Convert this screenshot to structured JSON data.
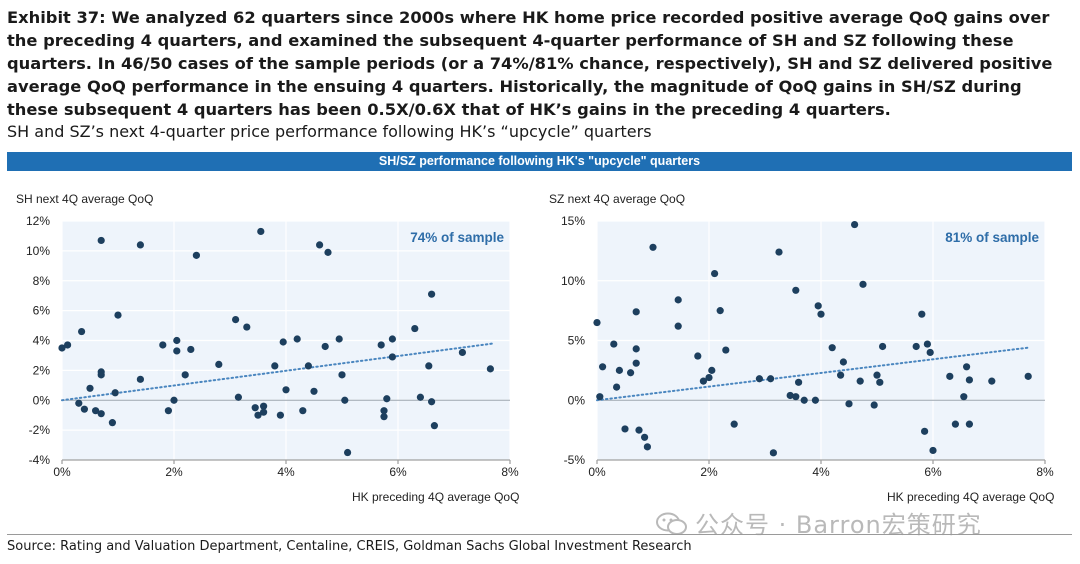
{
  "title": "Exhibit 37: We analyzed 62 quarters since 2000s where HK home price recorded positive average QoQ gains over the preceding 4 quarters, and examined the subsequent 4-quarter performance of SH and SZ following these quarters. In 46/50 cases of the sample periods (or a 74%/81% chance, respectively), SH and SZ delivered positive average QoQ performance in the ensuing 4 quarters. Historically, the magnitude of QoQ gains in SH/SZ during these subsequent 4 quarters has been 0.5X/0.6X that of HK’s gains in the preceding 4 quarters.",
  "subtitle": "SH and SZ’s next 4-quarter price performance following HK’s “upcycle” quarters",
  "band_title": "SH/SZ performance following HK's \"upcycle\" quarters",
  "source": "Source: Rating and Valuation Department, Centaline, CREIS, Goldman Sachs Global Investment Research",
  "watermark": "公众号 · Barron宏策研究",
  "colors": {
    "band": "#1f6fb4",
    "dot": "#1d3f5e",
    "trend": "#4a86bf",
    "plot_bg": "#eef4fb",
    "annotation": "#2e6da8"
  },
  "chart_data": [
    {
      "type": "scatter",
      "title": "",
      "ylabel": "SH next 4Q average QoQ",
      "xlabel": "HK preceding 4Q average QoQ",
      "annotation": "74% of sample",
      "xlim": [
        0,
        8
      ],
      "ylim": [
        -4,
        12
      ],
      "x_ticks": [
        "0%",
        "2%",
        "4%",
        "6%",
        "8%"
      ],
      "y_ticks": [
        "-4%",
        "-2%",
        "0%",
        "2%",
        "4%",
        "6%",
        "8%",
        "10%",
        "12%"
      ],
      "grid": true,
      "trendline": {
        "x": [
          0,
          7.7
        ],
        "y": [
          0,
          3.8
        ]
      },
      "points": [
        [
          0,
          3.5
        ],
        [
          0.1,
          3.7
        ],
        [
          0.3,
          -0.2
        ],
        [
          0.35,
          4.6
        ],
        [
          0.4,
          -0.6
        ],
        [
          0.5,
          0.8
        ],
        [
          0.6,
          -0.7
        ],
        [
          0.7,
          10.7
        ],
        [
          0.7,
          1.7
        ],
        [
          0.7,
          1.9
        ],
        [
          0.7,
          -0.9
        ],
        [
          0.9,
          -1.5
        ],
        [
          0.95,
          0.5
        ],
        [
          1.0,
          5.7
        ],
        [
          1.4,
          10.4
        ],
        [
          1.4,
          1.4
        ],
        [
          1.8,
          3.7
        ],
        [
          1.9,
          -0.7
        ],
        [
          2.0,
          0
        ],
        [
          2.05,
          4.0
        ],
        [
          2.05,
          3.3
        ],
        [
          2.2,
          1.7
        ],
        [
          2.3,
          3.4
        ],
        [
          2.4,
          9.7
        ],
        [
          2.8,
          2.4
        ],
        [
          3.1,
          5.4
        ],
        [
          3.15,
          0.2
        ],
        [
          3.3,
          4.9
        ],
        [
          3.45,
          -0.5
        ],
        [
          3.5,
          -1.0
        ],
        [
          3.55,
          11.3
        ],
        [
          3.6,
          -0.4
        ],
        [
          3.6,
          -0.8
        ],
        [
          3.8,
          2.3
        ],
        [
          3.9,
          -1.0
        ],
        [
          3.95,
          3.9
        ],
        [
          4.0,
          0.7
        ],
        [
          4.2,
          4.1
        ],
        [
          4.3,
          -0.7
        ],
        [
          4.4,
          2.3
        ],
        [
          4.5,
          0.6
        ],
        [
          4.6,
          10.4
        ],
        [
          4.7,
          3.6
        ],
        [
          4.75,
          9.9
        ],
        [
          4.95,
          4.1
        ],
        [
          5.0,
          1.7
        ],
        [
          5.05,
          0
        ],
        [
          5.1,
          -3.5
        ],
        [
          5.7,
          3.7
        ],
        [
          5.75,
          -1.1
        ],
        [
          5.75,
          -0.7
        ],
        [
          5.8,
          0.1
        ],
        [
          5.9,
          4.1
        ],
        [
          5.9,
          2.9
        ],
        [
          6.3,
          4.8
        ],
        [
          6.4,
          0.2
        ],
        [
          6.55,
          2.3
        ],
        [
          6.6,
          7.1
        ],
        [
          6.6,
          -0.1
        ],
        [
          6.65,
          -1.7
        ],
        [
          7.15,
          3.2
        ],
        [
          7.65,
          2.1
        ]
      ]
    },
    {
      "type": "scatter",
      "title": "",
      "ylabel": "SZ next 4Q average QoQ",
      "xlabel": "HK preceding 4Q average QoQ",
      "annotation": "81% of sample",
      "xlim": [
        0,
        8
      ],
      "ylim": [
        -5,
        15
      ],
      "x_ticks": [
        "0%",
        "2%",
        "4%",
        "6%",
        "8%"
      ],
      "y_ticks": [
        "-5%",
        "0%",
        "5%",
        "10%",
        "15%"
      ],
      "grid": true,
      "trendline": {
        "x": [
          0,
          7.7
        ],
        "y": [
          0,
          4.4
        ]
      },
      "points": [
        [
          0,
          6.5
        ],
        [
          0.05,
          0.3
        ],
        [
          0.1,
          2.8
        ],
        [
          0.3,
          4.7
        ],
        [
          0.35,
          1.1
        ],
        [
          0.4,
          2.5
        ],
        [
          0.5,
          -2.4
        ],
        [
          0.6,
          2.3
        ],
        [
          0.7,
          7.4
        ],
        [
          0.7,
          4.3
        ],
        [
          0.7,
          3.1
        ],
        [
          0.75,
          -2.5
        ],
        [
          0.85,
          -3.1
        ],
        [
          0.9,
          -3.9
        ],
        [
          1.0,
          12.8
        ],
        [
          1.45,
          8.4
        ],
        [
          1.45,
          6.2
        ],
        [
          1.8,
          3.7
        ],
        [
          1.9,
          1.6
        ],
        [
          2.0,
          1.9
        ],
        [
          2.05,
          2.5
        ],
        [
          2.1,
          10.6
        ],
        [
          2.2,
          7.5
        ],
        [
          2.3,
          4.2
        ],
        [
          2.45,
          -2.0
        ],
        [
          2.9,
          1.8
        ],
        [
          3.1,
          1.8
        ],
        [
          3.15,
          -4.4
        ],
        [
          3.25,
          12.4
        ],
        [
          3.45,
          0.4
        ],
        [
          3.55,
          0.3
        ],
        [
          3.55,
          9.2
        ],
        [
          3.6,
          1.5
        ],
        [
          3.7,
          0
        ],
        [
          3.9,
          0
        ],
        [
          3.95,
          7.9
        ],
        [
          4.0,
          7.2
        ],
        [
          4.2,
          4.4
        ],
        [
          4.35,
          2.1
        ],
        [
          4.4,
          3.2
        ],
        [
          4.5,
          -0.3
        ],
        [
          4.6,
          14.7
        ],
        [
          4.7,
          1.6
        ],
        [
          4.75,
          9.7
        ],
        [
          4.95,
          -0.4
        ],
        [
          5.0,
          2.1
        ],
        [
          5.05,
          1.5
        ],
        [
          5.1,
          4.5
        ],
        [
          5.7,
          4.5
        ],
        [
          5.8,
          7.2
        ],
        [
          5.85,
          -2.6
        ],
        [
          5.9,
          4.7
        ],
        [
          5.95,
          4.0
        ],
        [
          6.0,
          -4.2
        ],
        [
          6.3,
          2.0
        ],
        [
          6.4,
          -2.0
        ],
        [
          6.55,
          0.3
        ],
        [
          6.6,
          2.8
        ],
        [
          6.65,
          1.7
        ],
        [
          6.65,
          -2.0
        ],
        [
          7.05,
          1.6
        ],
        [
          7.7,
          2.0
        ]
      ]
    }
  ]
}
